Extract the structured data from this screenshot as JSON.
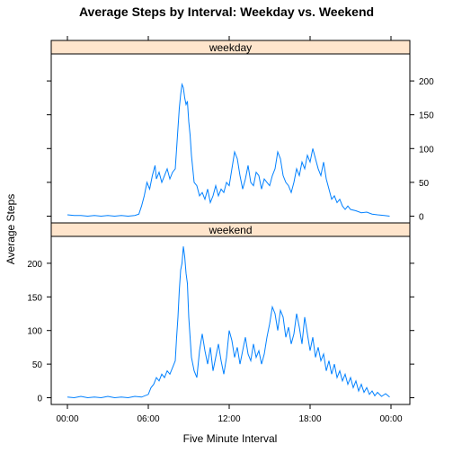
{
  "chart_data": {
    "type": "line",
    "title": "Average Steps by Interval: Weekday vs. Weekend",
    "xlabel": "Five Minute Interval",
    "ylabel": "Average Steps",
    "x_ticks": [
      "00:00",
      "06:00",
      "12:00",
      "18:00",
      "00:00"
    ],
    "x_tick_hours": [
      0,
      6,
      12,
      18,
      24
    ],
    "xlim_hours": [
      -1.2,
      25.4
    ],
    "y_ticks": [
      0,
      50,
      100,
      150,
      200
    ],
    "ylim": [
      -10,
      240
    ],
    "line_color": "#0080ff",
    "strip_color": "#ffe5cc",
    "panels": [
      {
        "name": "weekday",
        "points": [
          [
            0,
            2
          ],
          [
            0.5,
            1
          ],
          [
            1,
            1
          ],
          [
            1.5,
            0
          ],
          [
            2,
            1
          ],
          [
            2.5,
            0
          ],
          [
            3,
            1
          ],
          [
            3.5,
            0
          ],
          [
            4,
            1
          ],
          [
            4.5,
            0
          ],
          [
            5,
            1
          ],
          [
            5.3,
            3
          ],
          [
            5.5,
            15
          ],
          [
            5.7,
            30
          ],
          [
            5.9,
            50
          ],
          [
            6.1,
            40
          ],
          [
            6.3,
            60
          ],
          [
            6.5,
            75
          ],
          [
            6.6,
            55
          ],
          [
            6.8,
            65
          ],
          [
            7,
            50
          ],
          [
            7.2,
            60
          ],
          [
            7.4,
            70
          ],
          [
            7.6,
            55
          ],
          [
            7.8,
            65
          ],
          [
            8,
            70
          ],
          [
            8.1,
            100
          ],
          [
            8.2,
            130
          ],
          [
            8.3,
            160
          ],
          [
            8.4,
            180
          ],
          [
            8.5,
            195
          ],
          [
            8.6,
            190
          ],
          [
            8.7,
            175
          ],
          [
            8.8,
            165
          ],
          [
            8.9,
            170
          ],
          [
            9,
            140
          ],
          [
            9.1,
            120
          ],
          [
            9.2,
            90
          ],
          [
            9.3,
            70
          ],
          [
            9.4,
            50
          ],
          [
            9.6,
            45
          ],
          [
            9.8,
            30
          ],
          [
            10,
            35
          ],
          [
            10.2,
            25
          ],
          [
            10.4,
            40
          ],
          [
            10.6,
            20
          ],
          [
            10.8,
            30
          ],
          [
            11,
            45
          ],
          [
            11.2,
            30
          ],
          [
            11.4,
            40
          ],
          [
            11.6,
            35
          ],
          [
            11.8,
            50
          ],
          [
            12,
            45
          ],
          [
            12.2,
            70
          ],
          [
            12.4,
            95
          ],
          [
            12.6,
            85
          ],
          [
            12.8,
            60
          ],
          [
            13,
            40
          ],
          [
            13.2,
            55
          ],
          [
            13.4,
            75
          ],
          [
            13.6,
            50
          ],
          [
            13.8,
            45
          ],
          [
            14,
            65
          ],
          [
            14.2,
            60
          ],
          [
            14.4,
            40
          ],
          [
            14.6,
            55
          ],
          [
            14.8,
            50
          ],
          [
            15,
            45
          ],
          [
            15.2,
            60
          ],
          [
            15.4,
            70
          ],
          [
            15.6,
            95
          ],
          [
            15.8,
            85
          ],
          [
            16,
            60
          ],
          [
            16.2,
            50
          ],
          [
            16.4,
            45
          ],
          [
            16.6,
            35
          ],
          [
            16.8,
            50
          ],
          [
            17,
            70
          ],
          [
            17.2,
            60
          ],
          [
            17.4,
            80
          ],
          [
            17.6,
            70
          ],
          [
            17.8,
            90
          ],
          [
            18,
            80
          ],
          [
            18.2,
            100
          ],
          [
            18.4,
            85
          ],
          [
            18.6,
            70
          ],
          [
            18.8,
            60
          ],
          [
            19,
            80
          ],
          [
            19.2,
            55
          ],
          [
            19.4,
            40
          ],
          [
            19.6,
            25
          ],
          [
            19.8,
            30
          ],
          [
            20,
            20
          ],
          [
            20.2,
            25
          ],
          [
            20.4,
            15
          ],
          [
            20.6,
            10
          ],
          [
            20.8,
            15
          ],
          [
            21,
            10
          ],
          [
            21.4,
            8
          ],
          [
            21.8,
            5
          ],
          [
            22.2,
            6
          ],
          [
            22.6,
            3
          ],
          [
            23,
            2
          ],
          [
            23.5,
            1
          ],
          [
            23.9,
            0
          ]
        ]
      },
      {
        "name": "weekend",
        "points": [
          [
            0,
            1
          ],
          [
            0.5,
            0
          ],
          [
            1,
            2
          ],
          [
            1.5,
            0
          ],
          [
            2,
            1
          ],
          [
            2.5,
            0
          ],
          [
            3,
            2
          ],
          [
            3.5,
            0
          ],
          [
            4,
            1
          ],
          [
            4.5,
            0
          ],
          [
            5,
            2
          ],
          [
            5.5,
            1
          ],
          [
            6,
            5
          ],
          [
            6.2,
            15
          ],
          [
            6.4,
            20
          ],
          [
            6.6,
            30
          ],
          [
            6.8,
            25
          ],
          [
            7,
            35
          ],
          [
            7.2,
            30
          ],
          [
            7.4,
            40
          ],
          [
            7.6,
            35
          ],
          [
            7.8,
            45
          ],
          [
            8,
            55
          ],
          [
            8.1,
            90
          ],
          [
            8.2,
            120
          ],
          [
            8.3,
            160
          ],
          [
            8.4,
            190
          ],
          [
            8.5,
            200
          ],
          [
            8.6,
            225
          ],
          [
            8.7,
            210
          ],
          [
            8.8,
            185
          ],
          [
            8.9,
            170
          ],
          [
            9,
            120
          ],
          [
            9.1,
            90
          ],
          [
            9.2,
            60
          ],
          [
            9.4,
            40
          ],
          [
            9.6,
            30
          ],
          [
            9.8,
            70
          ],
          [
            10,
            95
          ],
          [
            10.2,
            70
          ],
          [
            10.4,
            50
          ],
          [
            10.6,
            75
          ],
          [
            10.8,
            40
          ],
          [
            11,
            60
          ],
          [
            11.2,
            80
          ],
          [
            11.4,
            55
          ],
          [
            11.6,
            35
          ],
          [
            11.8,
            60
          ],
          [
            12,
            100
          ],
          [
            12.2,
            85
          ],
          [
            12.4,
            60
          ],
          [
            12.6,
            75
          ],
          [
            12.8,
            50
          ],
          [
            13,
            70
          ],
          [
            13.2,
            90
          ],
          [
            13.4,
            65
          ],
          [
            13.6,
            55
          ],
          [
            13.8,
            80
          ],
          [
            14,
            60
          ],
          [
            14.2,
            70
          ],
          [
            14.4,
            50
          ],
          [
            14.6,
            65
          ],
          [
            14.8,
            90
          ],
          [
            15,
            110
          ],
          [
            15.2,
            135
          ],
          [
            15.4,
            125
          ],
          [
            15.6,
            100
          ],
          [
            15.8,
            130
          ],
          [
            16,
            120
          ],
          [
            16.2,
            90
          ],
          [
            16.4,
            105
          ],
          [
            16.6,
            80
          ],
          [
            16.8,
            95
          ],
          [
            17,
            125
          ],
          [
            17.2,
            105
          ],
          [
            17.4,
            80
          ],
          [
            17.6,
            120
          ],
          [
            17.8,
            95
          ],
          [
            18,
            70
          ],
          [
            18.2,
            90
          ],
          [
            18.4,
            60
          ],
          [
            18.6,
            75
          ],
          [
            18.8,
            55
          ],
          [
            19,
            65
          ],
          [
            19.2,
            40
          ],
          [
            19.4,
            55
          ],
          [
            19.6,
            35
          ],
          [
            19.8,
            50
          ],
          [
            20,
            30
          ],
          [
            20.2,
            40
          ],
          [
            20.4,
            25
          ],
          [
            20.6,
            35
          ],
          [
            20.8,
            20
          ],
          [
            21,
            30
          ],
          [
            21.2,
            15
          ],
          [
            21.4,
            25
          ],
          [
            21.6,
            10
          ],
          [
            21.8,
            20
          ],
          [
            22,
            8
          ],
          [
            22.2,
            15
          ],
          [
            22.4,
            5
          ],
          [
            22.6,
            10
          ],
          [
            22.8,
            3
          ],
          [
            23,
            8
          ],
          [
            23.3,
            2
          ],
          [
            23.6,
            6
          ],
          [
            23.9,
            1
          ]
        ]
      }
    ]
  }
}
